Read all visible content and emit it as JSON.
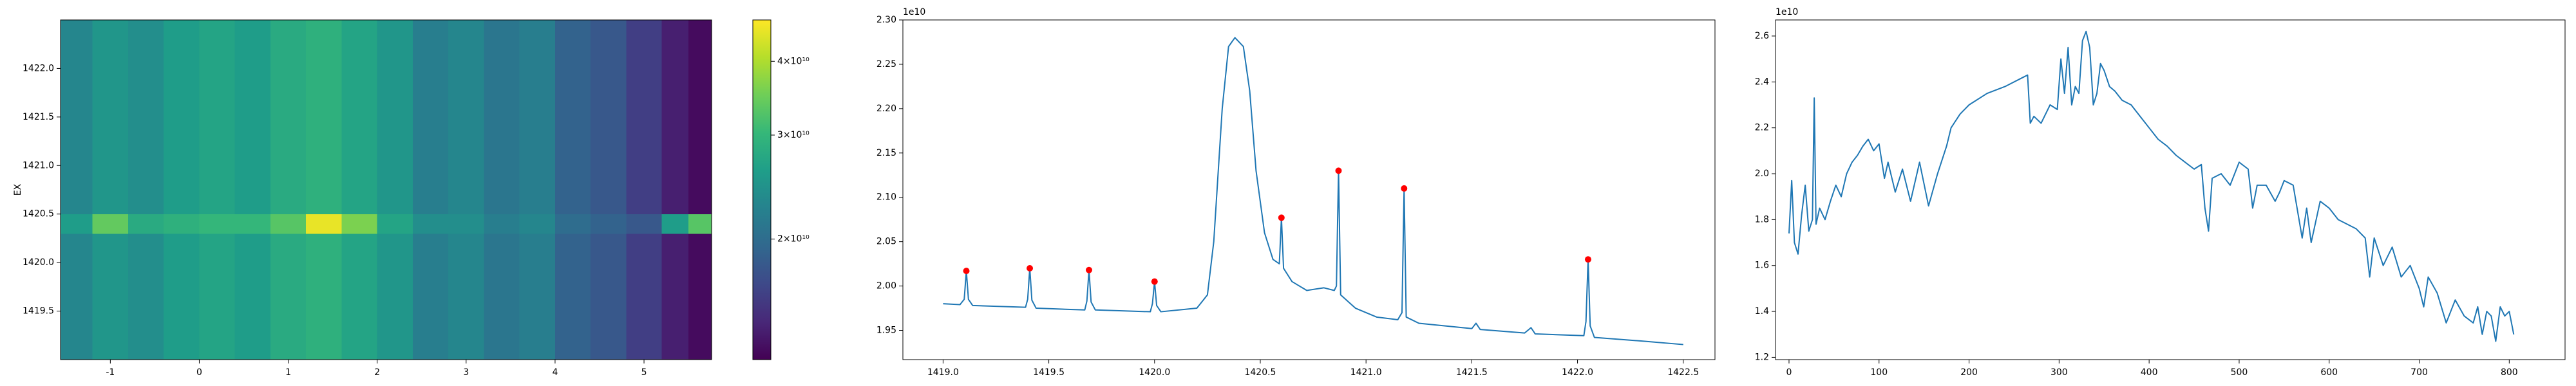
{
  "chart_data": [
    {
      "type": "heatmap",
      "ylabel": "EX",
      "colormap": "viridis",
      "x_edges": [
        -1.56,
        -1.2,
        -0.8,
        -0.4,
        0,
        0.4,
        0.8,
        1.2,
        1.6,
        2.0,
        2.4,
        2.8,
        3.2,
        3.6,
        4.0,
        4.4,
        4.8,
        5.2,
        5.5,
        5.76
      ],
      "y_edges": [
        1419.0,
        1420.3,
        1420.5,
        1422.5
      ],
      "z": [
        [
          23000000000.0,
          25000000000.0,
          24000000000.0,
          26000000000.0,
          27000000000.0,
          26000000000.0,
          28000000000.0,
          29000000000.0,
          27000000000.0,
          25000000000.0,
          22000000000.0,
          23000000000.0,
          21000000000.0,
          22000000000.0,
          19000000000.0,
          18000000000.0,
          16000000000.0,
          14000000000.0,
          13000000000.0
        ],
        [
          26000000000.0,
          34000000000.0,
          28000000000.0,
          29000000000.0,
          30000000000.0,
          30000000000.0,
          33000000000.0,
          45000000000.0,
          36000000000.0,
          27000000000.0,
          24000000000.0,
          24000000000.0,
          22000000000.0,
          23000000000.0,
          20000000000.0,
          19000000000.0,
          18000000000.0,
          26000000000.0,
          33000000000.0
        ],
        [
          23000000000.0,
          25000000000.0,
          24000000000.0,
          26000000000.0,
          27000000000.0,
          26000000000.0,
          28000000000.0,
          29000000000.0,
          27000000000.0,
          25000000000.0,
          22000000000.0,
          23000000000.0,
          21000000000.0,
          22000000000.0,
          19000000000.0,
          18000000000.0,
          16000000000.0,
          14000000000.0,
          13000000000.0
        ]
      ],
      "xlim": [
        -1.56,
        5.76
      ],
      "ylim": [
        1419.0,
        1422.5
      ],
      "xticks": [
        -1,
        0,
        1,
        2,
        3,
        4,
        5
      ],
      "yticks": [
        1419.5,
        {
          "value": 1420,
          "label": "1420.0"
        },
        1420.5,
        {
          "value": 1421,
          "label": "1421.0"
        },
        1421.5,
        {
          "value": 1422,
          "label": "1422.0"
        }
      ],
      "colorbar": {
        "log": true,
        "clim": [
          12500000000.0,
          47000000000.0
        ],
        "ticks": [
          {
            "value": 20000000000.0,
            "label": "2×10¹⁰"
          },
          {
            "value": 30000000000.0,
            "label": "3×10¹⁰"
          },
          {
            "value": 40000000000.0,
            "label": "4×10¹⁰"
          }
        ]
      }
    },
    {
      "type": "line",
      "offset_label": "1e10",
      "x": [
        1419.0,
        1419.08,
        1419.1,
        1419.11,
        1419.12,
        1419.14,
        1419.39,
        1419.4,
        1419.41,
        1419.42,
        1419.44,
        1419.67,
        1419.68,
        1419.69,
        1419.7,
        1419.72,
        1419.98,
        1419.99,
        1420.0,
        1420.01,
        1420.03,
        1420.2,
        1420.25,
        1420.28,
        1420.32,
        1420.35,
        1420.38,
        1420.42,
        1420.45,
        1420.48,
        1420.52,
        1420.56,
        1420.59,
        1420.6,
        1420.61,
        1420.65,
        1420.72,
        1420.8,
        1420.85,
        1420.86,
        1420.87,
        1420.88,
        1420.95,
        1421.05,
        1421.15,
        1421.17,
        1421.18,
        1421.19,
        1421.25,
        1421.5,
        1421.52,
        1421.54,
        1421.75,
        1421.78,
        1421.8,
        1422.03,
        1422.04,
        1422.05,
        1422.06,
        1422.08,
        1422.3,
        1422.5
      ],
      "series": [
        {
          "color": "#1f77b4",
          "values": [
            1.98,
            1.979,
            1.985,
            2.017,
            1.985,
            1.978,
            1.976,
            1.985,
            2.02,
            1.984,
            1.975,
            1.973,
            1.983,
            2.018,
            1.982,
            1.973,
            1.971,
            1.98,
            2.005,
            1.978,
            1.971,
            1.975,
            1.99,
            2.05,
            2.2,
            2.27,
            2.28,
            2.27,
            2.22,
            2.13,
            2.06,
            2.03,
            2.025,
            2.077,
            2.02,
            2.005,
            1.995,
            1.998,
            1.995,
            2.0,
            2.13,
            1.99,
            1.975,
            1.965,
            1.962,
            1.97,
            2.11,
            1.965,
            1.958,
            1.952,
            1.958,
            1.951,
            1.947,
            1.953,
            1.946,
            1.944,
            1.96,
            2.03,
            1.955,
            1.942,
            1.938,
            1.934
          ]
        }
      ],
      "peaks": {
        "color": "#ff0000",
        "x": [
          1419.11,
          1419.41,
          1419.69,
          1420.0,
          1420.6,
          1420.87,
          1421.18,
          1422.05
        ],
        "values": [
          2.017,
          2.02,
          2.018,
          2.005,
          2.077,
          2.13,
          2.11,
          2.03
        ]
      },
      "xlim": [
        1418.81,
        1422.65
      ],
      "ylim": [
        1.917,
        2.3
      ],
      "xticks": [
        {
          "value": 1419,
          "label": "1419.0"
        },
        1419.5,
        {
          "value": 1420,
          "label": "1420.0"
        },
        1420.5,
        {
          "value": 1421,
          "label": "1421.0"
        },
        1421.5,
        {
          "value": 1422,
          "label": "1422.0"
        },
        1422.5
      ],
      "yticks": [
        1.95,
        {
          "value": 2,
          "label": "2.00"
        },
        2.05,
        {
          "value": 2.1,
          "label": "2.10"
        },
        2.15,
        {
          "value": 2.2,
          "label": "2.20"
        },
        2.25,
        {
          "value": 2.3,
          "label": "2.30"
        }
      ]
    },
    {
      "type": "line",
      "offset_label": "1e10",
      "x": [
        0,
        3,
        6,
        10,
        14,
        18,
        22,
        26,
        28,
        30,
        34,
        40,
        46,
        52,
        58,
        64,
        70,
        76,
        82,
        88,
        94,
        100,
        106,
        110,
        118,
        126,
        135,
        145,
        155,
        165,
        175,
        180,
        190,
        200,
        220,
        240,
        260,
        265,
        268,
        272,
        280,
        290,
        298,
        302,
        306,
        310,
        314,
        318,
        322,
        326,
        330,
        334,
        338,
        342,
        346,
        350,
        356,
        362,
        370,
        380,
        390,
        400,
        410,
        420,
        430,
        440,
        450,
        458,
        462,
        466,
        470,
        480,
        490,
        500,
        510,
        515,
        520,
        530,
        540,
        545,
        550,
        560,
        570,
        575,
        580,
        590,
        600,
        610,
        620,
        630,
        640,
        645,
        650,
        660,
        670,
        680,
        690,
        700,
        705,
        710,
        720,
        730,
        740,
        750,
        760,
        765,
        770,
        775,
        780,
        785,
        790,
        795,
        800,
        805
      ],
      "series": [
        {
          "color": "#1f77b4",
          "values": [
            1.74,
            1.97,
            1.7,
            1.65,
            1.82,
            1.95,
            1.75,
            1.8,
            2.33,
            1.78,
            1.85,
            1.8,
            1.88,
            1.95,
            1.9,
            2.0,
            2.05,
            2.08,
            2.12,
            2.15,
            2.1,
            2.13,
            1.98,
            2.05,
            1.92,
            2.02,
            1.88,
            2.05,
            1.86,
            2.0,
            2.12,
            2.2,
            2.26,
            2.3,
            2.35,
            2.38,
            2.42,
            2.43,
            2.22,
            2.25,
            2.22,
            2.3,
            2.28,
            2.5,
            2.35,
            2.55,
            2.3,
            2.38,
            2.35,
            2.58,
            2.62,
            2.55,
            2.3,
            2.35,
            2.48,
            2.45,
            2.38,
            2.36,
            2.32,
            2.3,
            2.25,
            2.2,
            2.15,
            2.12,
            2.08,
            2.05,
            2.02,
            2.04,
            1.85,
            1.75,
            1.98,
            2.0,
            1.95,
            2.05,
            2.02,
            1.85,
            1.95,
            1.95,
            1.88,
            1.92,
            1.97,
            1.95,
            1.72,
            1.85,
            1.7,
            1.88,
            1.85,
            1.8,
            1.78,
            1.76,
            1.72,
            1.55,
            1.72,
            1.6,
            1.68,
            1.55,
            1.6,
            1.5,
            1.42,
            1.55,
            1.48,
            1.35,
            1.45,
            1.38,
            1.35,
            1.42,
            1.3,
            1.4,
            1.38,
            1.27,
            1.42,
            1.38,
            1.4,
            1.3
          ]
        }
      ],
      "xlim": [
        -15,
        862
      ],
      "ylim": [
        1.19,
        2.67
      ],
      "xticks": [
        0,
        100,
        200,
        300,
        400,
        500,
        600,
        700,
        800
      ],
      "yticks": [
        1.2,
        1.4,
        1.6,
        1.8,
        {
          "value": 2,
          "label": "2.0"
        },
        2.2,
        2.4,
        2.6
      ]
    }
  ]
}
